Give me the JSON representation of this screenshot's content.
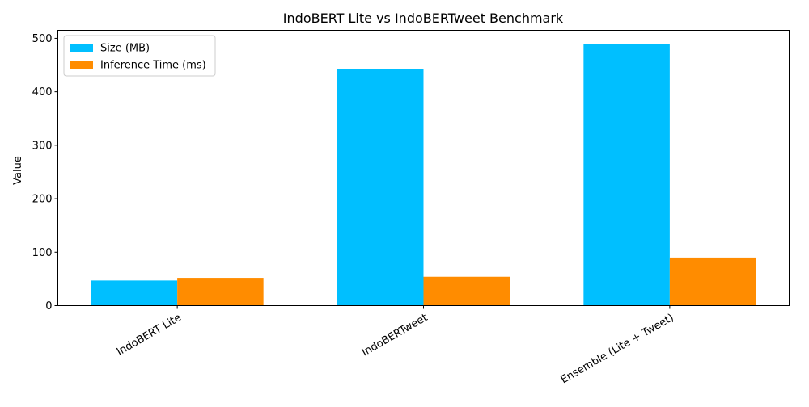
{
  "chart_data": {
    "type": "bar",
    "title": "IndoBERT Lite vs IndoBERTweet Benchmark",
    "xlabel": "",
    "ylabel": "Value",
    "categories": [
      "IndoBERT Lite",
      "IndoBERTweet",
      "Ensemble (Lite + Tweet)"
    ],
    "series": [
      {
        "name": "Size (MB)",
        "color": "#00bfff",
        "values": [
          47,
          442,
          489
        ]
      },
      {
        "name": "Inference Time (ms)",
        "color": "#ff8c00",
        "values": [
          52,
          54,
          90
        ]
      }
    ],
    "ylim": [
      0,
      515
    ],
    "yticks": [
      0,
      100,
      200,
      300,
      400,
      500
    ],
    "legend": "top-left",
    "grid": false
  }
}
